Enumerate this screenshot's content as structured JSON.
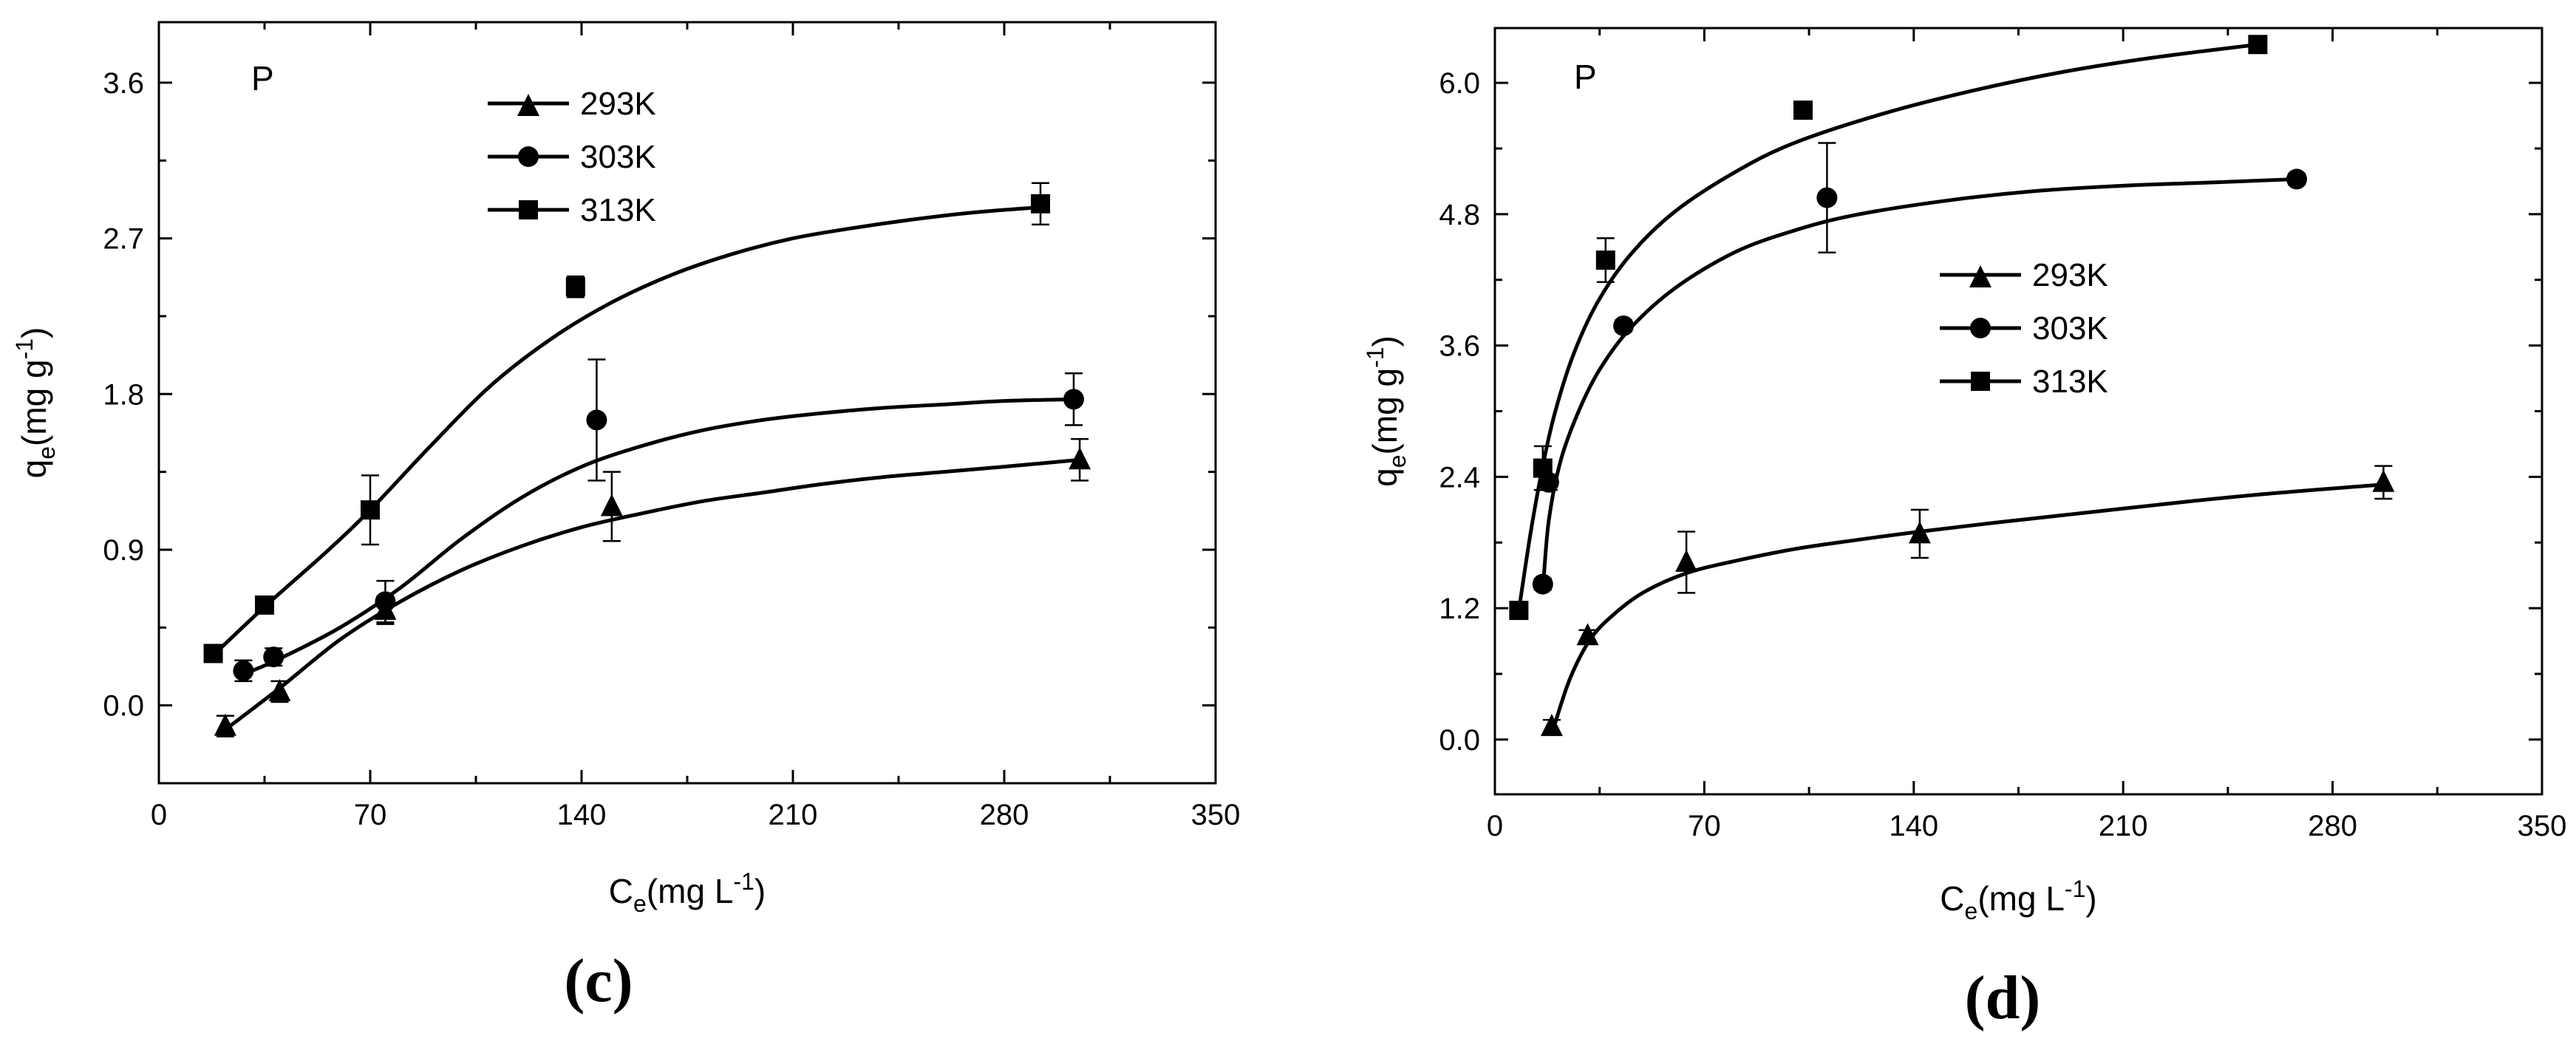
{
  "chart_data": [
    {
      "type": "scatter",
      "panel_label": "(c)",
      "annotation": "P",
      "xlabel": "C",
      "xlabel_sub": "e",
      "xlabel_unit": "(mg L",
      "xlabel_sup": "-1",
      "xlabel_close": ")",
      "ylabel": "q",
      "ylabel_sub": "e",
      "ylabel_unit": "(mg g",
      "ylabel_sup": "-1",
      "ylabel_close": ")",
      "xlim": [
        0,
        350
      ],
      "ylim": [
        -0.45,
        3.95
      ],
      "xticks": [
        0,
        70,
        140,
        210,
        280,
        350
      ],
      "xtick_labels": [
        "0",
        "70",
        "140",
        "210",
        "280",
        "350"
      ],
      "yticks": [
        0.0,
        0.9,
        1.8,
        2.7,
        3.6
      ],
      "ytick_labels": [
        "0.0",
        "0.9",
        "1.8",
        "2.7",
        "3.6"
      ],
      "legend_position": "top-center",
      "series": [
        {
          "name": "293K",
          "marker": "triangle",
          "x": [
            22,
            40,
            75,
            150,
            305
          ],
          "y": [
            -0.12,
            0.08,
            0.55,
            1.15,
            1.42
          ],
          "err": [
            0.06,
            0.06,
            0.08,
            0.2,
            0.12
          ],
          "fit_x": [
            22,
            40,
            60,
            80,
            100,
            120,
            140,
            160,
            180,
            200,
            220,
            240,
            260,
            280,
            305
          ],
          "fit_y": [
            -0.14,
            0.1,
            0.38,
            0.6,
            0.78,
            0.92,
            1.03,
            1.11,
            1.18,
            1.23,
            1.28,
            1.32,
            1.35,
            1.38,
            1.42
          ]
        },
        {
          "name": "303K",
          "marker": "circle",
          "x": [
            28,
            38,
            75,
            145,
            303
          ],
          "y": [
            0.2,
            0.28,
            0.6,
            1.65,
            1.77
          ],
          "err": [
            0.06,
            0.05,
            0.12,
            0.35,
            0.15
          ],
          "fit_x": [
            28,
            40,
            60,
            80,
            100,
            120,
            140,
            160,
            180,
            200,
            220,
            240,
            260,
            280,
            303
          ],
          "fit_y": [
            0.18,
            0.27,
            0.45,
            0.68,
            0.96,
            1.2,
            1.38,
            1.5,
            1.59,
            1.65,
            1.69,
            1.72,
            1.74,
            1.76,
            1.77
          ]
        },
        {
          "name": "313K",
          "marker": "square",
          "x": [
            18,
            35,
            70,
            138,
            292
          ],
          "y": [
            0.3,
            0.58,
            1.13,
            2.42,
            2.9
          ],
          "err": [
            0.04,
            0.04,
            0.2,
            0.06,
            0.12
          ],
          "fit_x": [
            18,
            35,
            55,
            70,
            90,
            110,
            130,
            150,
            170,
            190,
            210,
            230,
            250,
            270,
            292
          ],
          "fit_y": [
            0.29,
            0.57,
            0.88,
            1.13,
            1.5,
            1.85,
            2.12,
            2.33,
            2.49,
            2.61,
            2.7,
            2.76,
            2.81,
            2.85,
            2.88
          ]
        }
      ]
    },
    {
      "type": "scatter",
      "panel_label": "(d)",
      "annotation": "P",
      "xlabel": "C",
      "xlabel_sub": "e",
      "xlabel_unit": "(mg L",
      "xlabel_sup": "-1",
      "xlabel_close": ")",
      "ylabel": "q",
      "ylabel_sub": "e",
      "ylabel_unit": "(mg g",
      "ylabel_sup": "-1",
      "ylabel_close": ")",
      "xlim": [
        0,
        350
      ],
      "ylim": [
        -0.5,
        6.5
      ],
      "xticks": [
        0,
        70,
        140,
        210,
        280,
        350
      ],
      "xtick_labels": [
        "0",
        "70",
        "140",
        "210",
        "280",
        "350"
      ],
      "yticks": [
        0.0,
        1.2,
        2.4,
        3.6,
        4.8,
        6.0
      ],
      "ytick_labels": [
        "0.0",
        "1.2",
        "2.4",
        "3.6",
        "4.8",
        "6.0"
      ],
      "legend_position": "center-right",
      "series": [
        {
          "name": "293K",
          "marker": "triangle",
          "x": [
            19,
            31,
            64,
            142,
            297
          ],
          "y": [
            0.12,
            0.95,
            1.62,
            1.88,
            2.35
          ],
          "err": [
            0.06,
            0.05,
            0.28,
            0.22,
            0.15
          ],
          "fit_x": [
            19,
            25,
            32,
            40,
            50,
            64,
            80,
            100,
            120,
            142,
            170,
            200,
            230,
            260,
            297
          ],
          "fit_y": [
            0.05,
            0.55,
            0.92,
            1.15,
            1.35,
            1.52,
            1.63,
            1.74,
            1.82,
            1.9,
            1.99,
            2.08,
            2.17,
            2.25,
            2.33
          ]
        },
        {
          "name": "303K",
          "marker": "circle",
          "x": [
            16,
            18,
            43,
            111,
            268
          ],
          "y": [
            1.42,
            2.35,
            3.78,
            4.95,
            5.12
          ],
          "err": [
            0.05,
            0.07,
            0.05,
            0.5,
            0.05
          ],
          "fit_x": [
            16,
            18,
            22,
            28,
            35,
            45,
            60,
            80,
            100,
            120,
            150,
            180,
            210,
            240,
            268
          ],
          "fit_y": [
            1.35,
            2.0,
            2.55,
            3.0,
            3.38,
            3.75,
            4.12,
            4.45,
            4.65,
            4.79,
            4.92,
            5.01,
            5.06,
            5.09,
            5.12
          ]
        },
        {
          "name": "313K",
          "marker": "square",
          "x": [
            8,
            16,
            37,
            103,
            255
          ],
          "y": [
            1.18,
            2.48,
            4.38,
            5.75,
            6.35
          ],
          "err": [
            0.04,
            0.2,
            0.2,
            0.05,
            0.05
          ],
          "fit_x": [
            8,
            12,
            16,
            20,
            26,
            34,
            45,
            60,
            80,
            100,
            130,
            160,
            190,
            220,
            255
          ],
          "fit_y": [
            1.18,
            1.9,
            2.5,
            2.98,
            3.5,
            3.98,
            4.42,
            4.82,
            5.18,
            5.45,
            5.72,
            5.93,
            6.1,
            6.23,
            6.35
          ]
        }
      ]
    }
  ]
}
